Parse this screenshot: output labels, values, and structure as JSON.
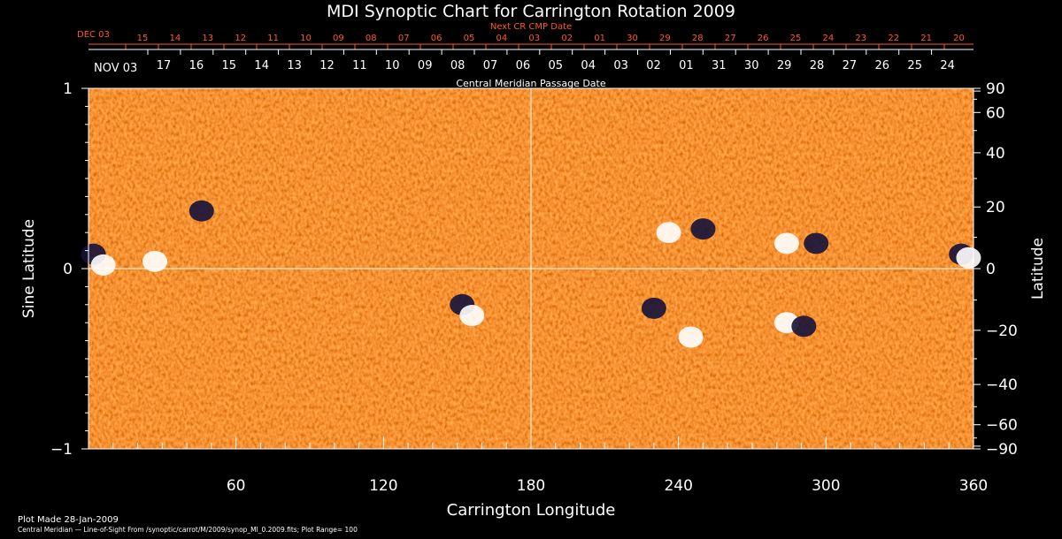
{
  "chart_data": {
    "type": "heatmap",
    "title": "MDI Synoptic Chart for Carrington Rotation 2009",
    "top_axis_red_label": "Next CR CMP Date",
    "top_axis_red_month": "DEC 03",
    "top_axis_red_ticks": [
      "15",
      "14",
      "13",
      "12",
      "11",
      "10",
      "09",
      "08",
      "07",
      "06",
      "05",
      "04",
      "03",
      "02",
      "01",
      "30",
      "29",
      "28",
      "27",
      "26",
      "25",
      "24",
      "23",
      "22",
      "21",
      "20"
    ],
    "top_axis_white_month": "NOV 03",
    "top_axis_white_ticks": [
      "17",
      "16",
      "15",
      "14",
      "13",
      "12",
      "11",
      "10",
      "09",
      "08",
      "07",
      "06",
      "05",
      "04",
      "03",
      "02",
      "01",
      "31",
      "30",
      "29",
      "28",
      "27",
      "26",
      "25",
      "24"
    ],
    "top_axis_label": "Central Meridian Passage Date",
    "xlabel": "Carrington Longitude",
    "x_ticks": [
      60,
      120,
      180,
      240,
      300,
      360
    ],
    "x_tick_labels": [
      "60",
      "120",
      "180",
      "240",
      "300",
      "360"
    ],
    "xlim": [
      0,
      360
    ],
    "ylabel_left": "Sine Latitude",
    "y_left_ticks": [
      1,
      0,
      -1
    ],
    "y_left_tick_labels": [
      "1",
      "0",
      "−1"
    ],
    "ylim": [
      -1,
      1
    ],
    "ylabel_right": "Latitude",
    "y_right_ticks": [
      90,
      60,
      40,
      20,
      0,
      -20,
      -40,
      -60,
      -90
    ],
    "y_right_tick_labels": [
      "90",
      "60",
      "40",
      "20",
      "0",
      "−20",
      "−40",
      "−60",
      "−90"
    ],
    "colors": {
      "background_field": "#ff4a12",
      "positive": "#ffffff",
      "negative": "#14123a",
      "axis": "#ffffff",
      "red_axis": "#ff5a1e"
    },
    "active_regions": [
      {
        "lon": 2,
        "sinlat": 0.08,
        "polarity": "negative"
      },
      {
        "lon": 6,
        "sinlat": 0.02,
        "polarity": "positive"
      },
      {
        "lon": 27,
        "sinlat": 0.04,
        "polarity": "positive"
      },
      {
        "lon": 46,
        "sinlat": 0.32,
        "polarity": "negative"
      },
      {
        "lon": 152,
        "sinlat": -0.2,
        "polarity": "negative"
      },
      {
        "lon": 156,
        "sinlat": -0.26,
        "polarity": "positive"
      },
      {
        "lon": 230,
        "sinlat": -0.22,
        "polarity": "negative"
      },
      {
        "lon": 236,
        "sinlat": 0.2,
        "polarity": "positive"
      },
      {
        "lon": 250,
        "sinlat": 0.22,
        "polarity": "negative"
      },
      {
        "lon": 245,
        "sinlat": -0.38,
        "polarity": "positive"
      },
      {
        "lon": 284,
        "sinlat": -0.3,
        "polarity": "positive"
      },
      {
        "lon": 291,
        "sinlat": -0.32,
        "polarity": "negative"
      },
      {
        "lon": 296,
        "sinlat": 0.14,
        "polarity": "negative"
      },
      {
        "lon": 284,
        "sinlat": 0.14,
        "polarity": "positive"
      },
      {
        "lon": 355,
        "sinlat": 0.08,
        "polarity": "negative"
      },
      {
        "lon": 358,
        "sinlat": 0.06,
        "polarity": "positive"
      }
    ]
  },
  "footer": {
    "plot_made": "Plot Made 28-Jan-2009",
    "source": "Central Meridian — Line-of-Sight From /synoptic/carrot/M/2009/synop_Ml_0.2009.fits; Plot Range=  100"
  }
}
